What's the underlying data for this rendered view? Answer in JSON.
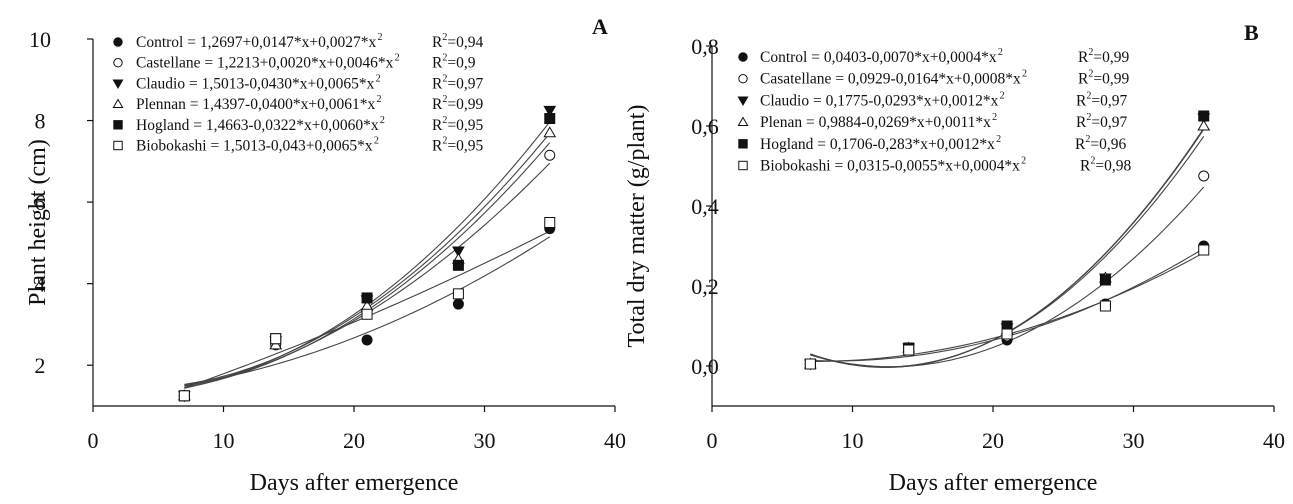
{
  "chart_data": [
    {
      "type": "scatter",
      "panel_label": "A",
      "xlabel": "Days after emergence",
      "ylabel": "Plant height (cm)",
      "xlim": [
        0,
        40
      ],
      "ylim": [
        1,
        10
      ],
      "xticks": [
        0,
        10,
        20,
        30,
        40
      ],
      "yticks": [
        2,
        4,
        6,
        8,
        10
      ],
      "xtick_labels": [
        "0",
        "10",
        "20",
        "30",
        "40"
      ],
      "ytick_labels": [
        "2",
        "4",
        "6",
        "8",
        "10"
      ],
      "grid": false,
      "legend_position": "top-left",
      "x": [
        7,
        14,
        21,
        28,
        35
      ],
      "series": [
        {
          "name": "Control",
          "marker": "filled-circle",
          "values": [
            1.25,
            2.6,
            2.62,
            3.5,
            5.35
          ],
          "equation": "Control = 1,2697+0,0147*x+0,0027*x",
          "r2": "R=0,94"
        },
        {
          "name": "Castellane",
          "marker": "open-circle",
          "values": [
            1.25,
            2.5,
            3.3,
            4.5,
            7.15
          ],
          "equation": "Castellane = 1,2213+0,0020*x+0,0046*x",
          "r2": "R=0,9"
        },
        {
          "name": "Claudio",
          "marker": "filled-triangle-down",
          "values": [
            1.25,
            2.6,
            3.6,
            4.8,
            8.25
          ],
          "equation": "Claudio = 1,5013-0,0430*x+0,0065*x",
          "r2": "R=0,97"
        },
        {
          "name": "Plennan",
          "marker": "open-triangle-up",
          "values": [
            1.25,
            2.5,
            3.45,
            4.6,
            7.7
          ],
          "equation": "Plennan = 1,4397-0,0400*x+0,0061*x",
          "r2": "R=0,99"
        },
        {
          "name": "Hogland",
          "marker": "filled-square",
          "values": [
            1.25,
            2.65,
            3.65,
            4.45,
            8.05
          ],
          "equation": "Hogland = 1,4663-0,0322*x+0,0060*x",
          "r2": "R=0,95"
        },
        {
          "name": "Biobokashi",
          "marker": "open-square",
          "values": [
            1.25,
            2.65,
            3.25,
            3.75,
            5.5
          ],
          "equation": "Biobokashi = 1,5013-0,043+0,0065*x",
          "r2": "R=0,95"
        }
      ]
    },
    {
      "type": "scatter",
      "panel_label": "B",
      "xlabel": "Days after emergence",
      "ylabel": "Total dry matter (g/plant)",
      "xlim": [
        0,
        40
      ],
      "ylim": [
        -0.1,
        0.8
      ],
      "xticks": [
        0,
        10,
        20,
        30,
        40
      ],
      "yticks": [
        0.0,
        0.2,
        0.4,
        0.6,
        0.8
      ],
      "xtick_labels": [
        "0",
        "10",
        "20",
        "30",
        "40"
      ],
      "ytick_labels": [
        "0,0",
        "0,2",
        "0,4",
        "0,6",
        "0,8"
      ],
      "grid": false,
      "legend_position": "top-left",
      "x": [
        7,
        14,
        21,
        28,
        35
      ],
      "series": [
        {
          "name": "Control",
          "marker": "filled-circle",
          "values": [
            0.005,
            0.045,
            0.065,
            0.155,
            0.3
          ],
          "equation": "Control = 0,0403-0,0070*x+0,0004*x",
          "r2": "R=0,99"
        },
        {
          "name": "Casatellane",
          "marker": "open-circle",
          "values": [
            0.005,
            0.04,
            0.075,
            0.15,
            0.475
          ],
          "equation": "Casatellane = 0,0929-0,0164*x+0,0008*x",
          "r2": "R=0,99"
        },
        {
          "name": "Claudio",
          "marker": "filled-triangle-down",
          "values": [
            0.005,
            0.045,
            0.095,
            0.22,
            0.62
          ],
          "equation": "Claudio = 0,1775-0,0293*x+0,0012*x",
          "r2": "R=0,97"
        },
        {
          "name": "Plenan",
          "marker": "open-triangle-up",
          "values": [
            0.005,
            0.045,
            0.09,
            0.22,
            0.6
          ],
          "equation": "Plenan = 0,9884-0,0269*x+0,0011*x",
          "r2": "R=0,97"
        },
        {
          "name": "Hogland",
          "marker": "filled-square",
          "values": [
            0.005,
            0.045,
            0.1,
            0.215,
            0.625
          ],
          "equation": "Hogland = 0,1706-0,283*x+0,0012*x",
          "r2": "R=0,96"
        },
        {
          "name": "Biobokashi",
          "marker": "open-square",
          "values": [
            0.005,
            0.04,
            0.08,
            0.15,
            0.29
          ],
          "equation": "Biobokashi = 0,0315-0,0055*x+0,0004*x",
          "r2": "R=0,98"
        }
      ]
    }
  ]
}
